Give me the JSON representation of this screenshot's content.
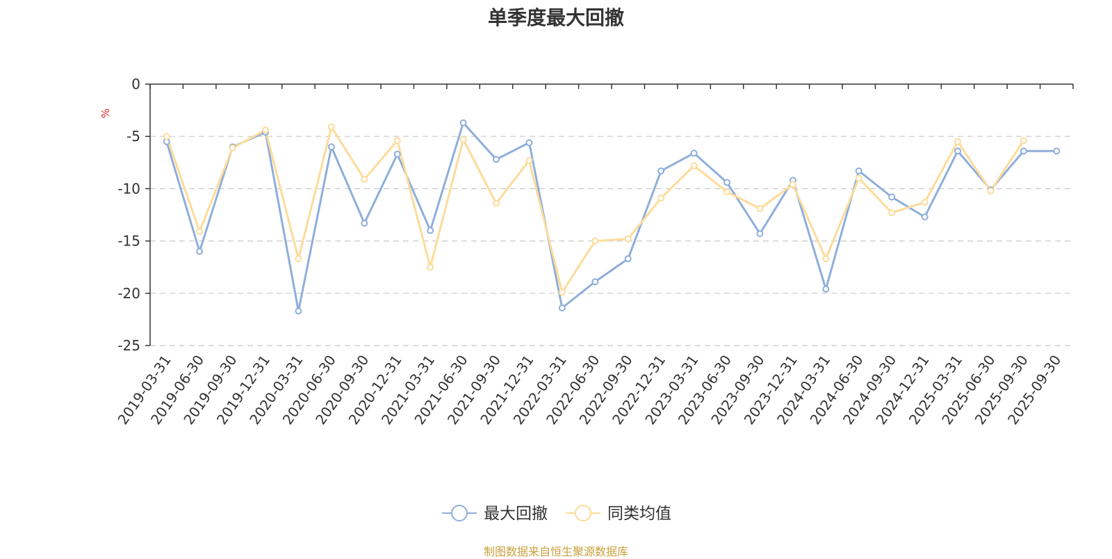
{
  "chart_data": {
    "type": "line",
    "title": "单季度最大回撤",
    "ylabel": "%",
    "xlabel": "",
    "ylim": [
      -25,
      0
    ],
    "yticks": [
      0,
      -5,
      -10,
      -15,
      -20,
      -25
    ],
    "grid": true,
    "legend_position": "bottom-center",
    "categories": [
      "2019-03-31",
      "2019-06-30",
      "2019-09-30",
      "2019-12-31",
      "2020-03-31",
      "2020-06-30",
      "2020-09-30",
      "2020-12-31",
      "2021-03-31",
      "2021-06-30",
      "2021-09-30",
      "2021-12-31",
      "2022-03-31",
      "2022-06-30",
      "2022-09-30",
      "2022-12-31",
      "2023-03-31",
      "2023-06-30",
      "2023-09-30",
      "2023-12-31",
      "2024-03-31",
      "2024-06-30",
      "2024-09-30",
      "2024-12-31",
      "2025-03-31",
      "2025-06-30",
      "2025-09-30",
      "2025-09-30"
    ],
    "series": [
      {
        "name": "最大回撤",
        "color": "#8eaedb",
        "values": [
          -5.5,
          -16.0,
          -6.0,
          -4.6,
          -21.7,
          -6.0,
          -13.3,
          -6.7,
          -14.0,
          -3.7,
          -7.2,
          -5.6,
          -21.4,
          -18.9,
          -16.7,
          -8.3,
          -6.6,
          -9.4,
          -14.3,
          -9.2,
          -19.6,
          -8.3,
          -10.8,
          -12.7,
          -6.4,
          -10.1,
          -6.4,
          -6.4
        ]
      },
      {
        "name": "同类均值",
        "color": "#fddb9a",
        "values": [
          -5.0,
          -14.1,
          -6.1,
          -4.4,
          -16.7,
          -4.1,
          -9.1,
          -5.4,
          -17.5,
          -5.3,
          -11.4,
          -7.3,
          -19.9,
          -15.0,
          -14.8,
          -10.9,
          -7.8,
          -10.3,
          -11.9,
          -9.6,
          -16.7,
          -9.0,
          -12.3,
          -11.3,
          -5.5,
          -10.2,
          -5.4,
          null
        ]
      }
    ]
  },
  "source_note": "制图数据来自恒生聚源数据库"
}
